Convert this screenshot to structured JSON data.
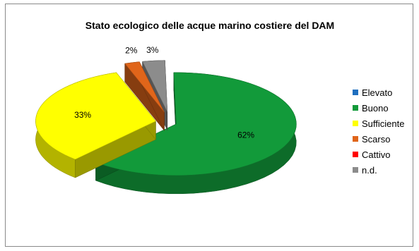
{
  "chart_data": {
    "type": "pie",
    "title": "Stato ecologico delle acque marino costiere del DAM",
    "categories": [
      "Elevato",
      "Buono",
      "Sufficiente",
      "Scarso",
      "Cattivo",
      "n.d."
    ],
    "values": [
      0,
      62,
      33,
      2,
      0,
      3
    ],
    "labels": [
      "",
      "62%",
      "33%",
      "2%",
      "",
      "3%"
    ],
    "colors": [
      "#1f6fbf",
      "#129a3a",
      "#ffff00",
      "#e0651a",
      "#ff0000",
      "#8c8c8c"
    ],
    "legend_position": "right",
    "style": "3d-exploded"
  }
}
